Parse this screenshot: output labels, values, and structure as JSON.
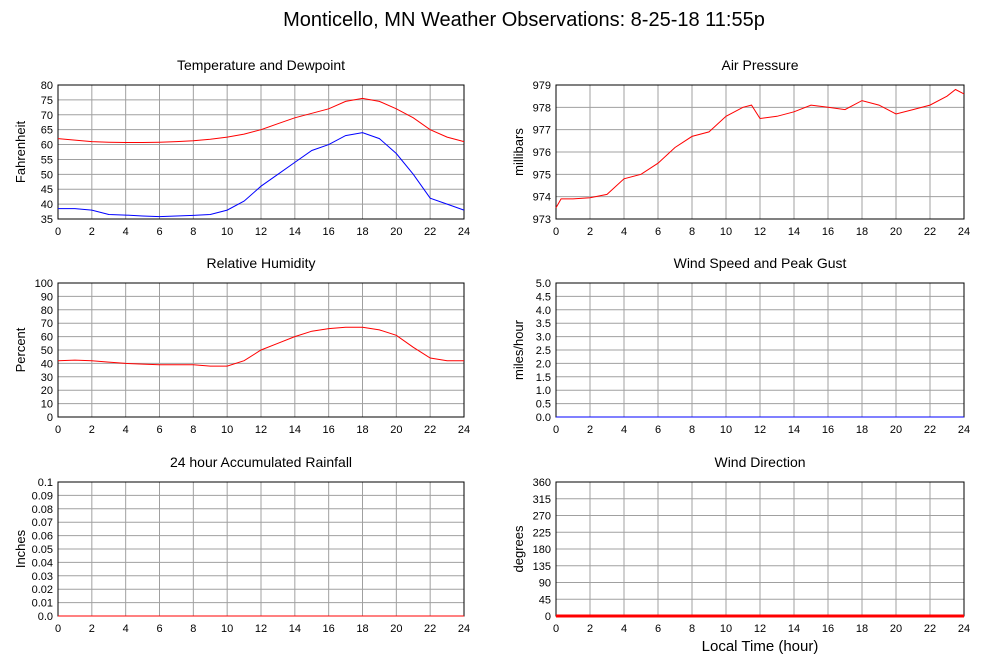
{
  "page": {
    "title": "Monticello, MN Weather Observations: 8-25-18 11:55p",
    "xlabel": "Local Time (hour)"
  },
  "chart_data": [
    {
      "id": "temp",
      "type": "line",
      "title": "Temperature and Dewpoint",
      "ylabel": "Fahrenheit",
      "xlim": [
        0,
        24
      ],
      "ylim": [
        35,
        80
      ],
      "yticks": [
        "35",
        "40",
        "45",
        "50",
        "55",
        "60",
        "65",
        "70",
        "75",
        "80"
      ],
      "xticks": [
        "0",
        "2",
        "4",
        "6",
        "8",
        "10",
        "12",
        "14",
        "16",
        "18",
        "20",
        "22",
        "24"
      ],
      "grid": true,
      "series": [
        {
          "color": "#ff0000",
          "x": [
            0,
            1,
            2,
            3,
            4,
            5,
            6,
            7,
            8,
            9,
            10,
            11,
            12,
            13,
            14,
            15,
            16,
            17,
            18,
            19,
            20,
            21,
            22,
            23,
            24
          ],
          "values": [
            62,
            61.5,
            61,
            60.8,
            60.7,
            60.7,
            60.8,
            61,
            61.3,
            61.8,
            62.5,
            63.5,
            65,
            67,
            69,
            70.5,
            72,
            74.5,
            75.5,
            74.5,
            72,
            69,
            65,
            62.5,
            61
          ]
        },
        {
          "color": "#0000ff",
          "x": [
            0,
            1,
            2,
            3,
            4,
            5,
            6,
            7,
            8,
            9,
            10,
            11,
            12,
            13,
            14,
            15,
            16,
            17,
            18,
            19,
            20,
            21,
            22,
            23,
            24
          ],
          "values": [
            38.5,
            38.5,
            38,
            36.5,
            36.3,
            36,
            35.8,
            36,
            36.2,
            36.5,
            38,
            41,
            46,
            50,
            54,
            58,
            60,
            63,
            64,
            62,
            57,
            50,
            42,
            40,
            38
          ]
        }
      ]
    },
    {
      "id": "pressure",
      "type": "line",
      "title": "Air Pressure",
      "ylabel": "millibars",
      "xlim": [
        0,
        24
      ],
      "ylim": [
        973,
        979
      ],
      "yticks": [
        "973",
        "974",
        "975",
        "976",
        "977",
        "978",
        "979"
      ],
      "xticks": [
        "0",
        "2",
        "4",
        "6",
        "8",
        "10",
        "12",
        "14",
        "16",
        "18",
        "20",
        "22",
        "24"
      ],
      "grid": true,
      "series": [
        {
          "color": "#ff0000",
          "x": [
            0,
            0.3,
            1,
            2,
            3,
            4,
            5,
            6,
            7,
            8,
            9,
            10,
            11,
            11.5,
            12,
            13,
            14,
            15,
            16,
            17,
            18,
            19,
            20,
            21,
            22,
            23,
            23.5,
            24
          ],
          "values": [
            973.5,
            973.9,
            973.9,
            973.95,
            974.1,
            974.8,
            975,
            975.5,
            976.2,
            976.7,
            976.9,
            977.6,
            978,
            978.1,
            977.5,
            977.6,
            977.8,
            978.1,
            978,
            977.9,
            978.3,
            978.1,
            977.7,
            977.9,
            978.1,
            978.5,
            978.8,
            978.6
          ]
        }
      ]
    },
    {
      "id": "humidity",
      "type": "line",
      "title": "Relative Humidity",
      "ylabel": "Percent",
      "xlim": [
        0,
        24
      ],
      "ylim": [
        0,
        100
      ],
      "yticks": [
        "0",
        "10",
        "20",
        "30",
        "40",
        "50",
        "60",
        "70",
        "80",
        "90",
        "100"
      ],
      "xticks": [
        "0",
        "2",
        "4",
        "6",
        "8",
        "10",
        "12",
        "14",
        "16",
        "18",
        "20",
        "22",
        "24"
      ],
      "grid": true,
      "series": [
        {
          "color": "#ff0000",
          "x": [
            0,
            1,
            2,
            3,
            4,
            5,
            6,
            7,
            8,
            9,
            10,
            11,
            12,
            13,
            14,
            15,
            16,
            17,
            18,
            19,
            20,
            21,
            22,
            23,
            24
          ],
          "values": [
            42,
            42.5,
            42,
            41,
            40,
            39.5,
            39,
            39,
            39,
            38,
            38,
            42,
            50,
            55,
            60,
            64,
            66,
            67,
            67,
            65,
            61,
            52,
            44,
            42,
            42
          ]
        }
      ]
    },
    {
      "id": "wind",
      "type": "line",
      "title": "Wind Speed and Peak Gust",
      "ylabel": "miles/hour",
      "xlim": [
        0,
        24
      ],
      "ylim": [
        0,
        5
      ],
      "yticks": [
        "0.0",
        "0.5",
        "1.0",
        "1.5",
        "2.0",
        "2.5",
        "3.0",
        "3.5",
        "4.0",
        "4.5",
        "5.0"
      ],
      "xticks": [
        "0",
        "2",
        "4",
        "6",
        "8",
        "10",
        "12",
        "14",
        "16",
        "18",
        "20",
        "22",
        "24"
      ],
      "grid": true,
      "series": [
        {
          "color": "#ff0000",
          "x": [
            0,
            24
          ],
          "values": [
            0,
            0
          ]
        },
        {
          "color": "#0000ff",
          "x": [
            0,
            24
          ],
          "values": [
            0,
            0
          ]
        }
      ]
    },
    {
      "id": "rain",
      "type": "line",
      "title": "24 hour Accumulated Rainfall",
      "ylabel": "Inches",
      "xlim": [
        0,
        24
      ],
      "ylim": [
        0,
        0.1
      ],
      "yticks": [
        "0.0",
        "0.01",
        "0.02",
        "0.03",
        "0.04",
        "0.05",
        "0.06",
        "0.07",
        "0.08",
        "0.09",
        "0.1"
      ],
      "xticks": [
        "0",
        "2",
        "4",
        "6",
        "8",
        "10",
        "12",
        "14",
        "16",
        "18",
        "20",
        "22",
        "24"
      ],
      "grid": true,
      "series": [
        {
          "color": "#ff0000",
          "x": [
            0,
            24
          ],
          "values": [
            0,
            0
          ]
        }
      ]
    },
    {
      "id": "direction",
      "type": "line",
      "title": "Wind Direction",
      "ylabel": "degrees",
      "xlim": [
        0,
        24
      ],
      "ylim": [
        0,
        360
      ],
      "yticks": [
        "0",
        "45",
        "90",
        "135",
        "180",
        "225",
        "270",
        "315",
        "360"
      ],
      "xticks": [
        "0",
        "2",
        "4",
        "6",
        "8",
        "10",
        "12",
        "14",
        "16",
        "18",
        "20",
        "22",
        "24"
      ],
      "grid": true,
      "series": [
        {
          "color": "#ff0000",
          "x": [
            0,
            24
          ],
          "values": [
            0,
            0
          ]
        }
      ]
    }
  ]
}
